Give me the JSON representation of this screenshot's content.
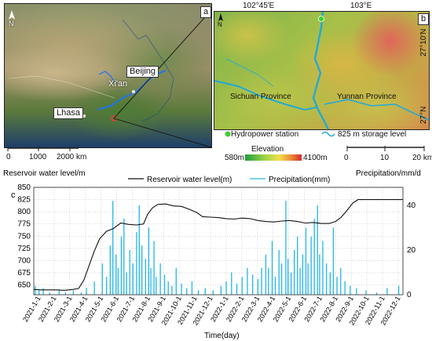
{
  "map_a": {
    "panel_letter": "a",
    "north": "N",
    "places": [
      "Beijing",
      "Xi'an",
      "Lhasa"
    ],
    "scale_ticks": [
      "0",
      "1000",
      "2000 km"
    ]
  },
  "map_b": {
    "panel_letter": "b",
    "north": "N",
    "lon_labels": [
      "102°45′E",
      "103°E"
    ],
    "lat_labels": [
      "27°10′N",
      "27°N"
    ],
    "regions": [
      "Sichuan Province",
      "Yunnan Province"
    ],
    "legend": {
      "station": "Hydropower station",
      "storage": "825 m storage level",
      "elevation_title": "Elevation",
      "elev_min": "580m",
      "elev_max": "4100m"
    },
    "scale_ticks": [
      "0",
      "10",
      "20 km"
    ],
    "colors": {
      "station": "#3fcf2f",
      "river": "#22a9d8"
    }
  },
  "chart_data": {
    "type": "line",
    "panel_letter": "c",
    "ylabel_left": "Reservoir water level/m",
    "ylabel_right": "Precipitation/mm/d",
    "xlabel": "Time(day)",
    "legend_position": "top",
    "left_axis": {
      "min": 630,
      "max": 850,
      "ticks": [
        650,
        675,
        700,
        725,
        750,
        775,
        800,
        825,
        850
      ]
    },
    "right_axis": {
      "min": 0,
      "max": 48,
      "ticks": [
        0,
        20,
        40
      ]
    },
    "x_ticks": [
      "2021-1-1",
      "2021-2-1",
      "2021-3-1",
      "2021-4-1",
      "2021-5-1",
      "2021-6-1",
      "2021-7-1",
      "2021-8-1",
      "2021-9-1",
      "2021-10-1",
      "2021-11-1",
      "2021-12-1",
      "2022-1-1",
      "2022-2-1",
      "2022-3-1",
      "2022-4-1",
      "2022-5-1",
      "2022-6-1",
      "2022-7-1",
      "2022-8-1",
      "2022-9-1",
      "2022-10-1",
      "2022-11-1",
      "2022-12-1"
    ],
    "series": [
      {
        "name": "Reservoir water level(m)",
        "color": "#111111",
        "axis": "left",
        "points": [
          [
            0,
            641
          ],
          [
            15,
            640
          ],
          [
            28,
            640
          ],
          [
            45,
            640
          ],
          [
            58,
            639
          ],
          [
            75,
            641
          ],
          [
            85,
            643
          ],
          [
            95,
            660
          ],
          [
            105,
            690
          ],
          [
            115,
            720
          ],
          [
            125,
            745
          ],
          [
            138,
            760
          ],
          [
            150,
            765
          ],
          [
            165,
            777
          ],
          [
            180,
            774
          ],
          [
            195,
            773
          ],
          [
            208,
            775
          ],
          [
            216,
            795
          ],
          [
            225,
            808
          ],
          [
            235,
            815
          ],
          [
            250,
            816
          ],
          [
            265,
            812
          ],
          [
            280,
            811
          ],
          [
            295,
            805
          ],
          [
            310,
            798
          ],
          [
            320,
            790
          ],
          [
            335,
            789
          ],
          [
            350,
            788
          ],
          [
            365,
            786
          ],
          [
            380,
            785
          ],
          [
            395,
            787
          ],
          [
            410,
            786
          ],
          [
            425,
            782
          ],
          [
            440,
            780
          ],
          [
            455,
            779
          ],
          [
            470,
            781
          ],
          [
            485,
            782
          ],
          [
            500,
            780
          ],
          [
            515,
            777
          ],
          [
            530,
            778
          ],
          [
            545,
            776
          ],
          [
            560,
            776
          ],
          [
            572,
            780
          ],
          [
            582,
            788
          ],
          [
            592,
            800
          ],
          [
            605,
            818
          ],
          [
            615,
            825
          ],
          [
            640,
            825
          ],
          [
            665,
            825
          ],
          [
            700,
            825
          ]
        ]
      },
      {
        "name": "Precipitation(mm)",
        "color": "#22b6e8",
        "axis": "right",
        "bars": [
          [
            3,
            4
          ],
          [
            10,
            2
          ],
          [
            18,
            3
          ],
          [
            30,
            1
          ],
          [
            48,
            2
          ],
          [
            60,
            1
          ],
          [
            75,
            2
          ],
          [
            90,
            1
          ],
          [
            100,
            3
          ],
          [
            115,
            6
          ],
          [
            130,
            14
          ],
          [
            138,
            8
          ],
          [
            145,
            22
          ],
          [
            150,
            42
          ],
          [
            156,
            18
          ],
          [
            160,
            12
          ],
          [
            166,
            26
          ],
          [
            171,
            34
          ],
          [
            176,
            10
          ],
          [
            182,
            20
          ],
          [
            188,
            14
          ],
          [
            195,
            28
          ],
          [
            200,
            40
          ],
          [
            205,
            22
          ],
          [
            212,
            16
          ],
          [
            218,
            30
          ],
          [
            222,
            12
          ],
          [
            228,
            24
          ],
          [
            232,
            8
          ],
          [
            240,
            14
          ],
          [
            248,
            9
          ],
          [
            255,
            6
          ],
          [
            262,
            4
          ],
          [
            270,
            12
          ],
          [
            280,
            5
          ],
          [
            290,
            3
          ],
          [
            300,
            6
          ],
          [
            312,
            2
          ],
          [
            325,
            3
          ],
          [
            340,
            2
          ],
          [
            355,
            4
          ],
          [
            365,
            6
          ],
          [
            375,
            10
          ],
          [
            385,
            5
          ],
          [
            395,
            8
          ],
          [
            405,
            12
          ],
          [
            415,
            9
          ],
          [
            425,
            7
          ],
          [
            432,
            12
          ],
          [
            440,
            18
          ],
          [
            445,
            12
          ],
          [
            452,
            24
          ],
          [
            458,
            8
          ],
          [
            465,
            20
          ],
          [
            470,
            14
          ],
          [
            478,
            42
          ],
          [
            482,
            16
          ],
          [
            488,
            10
          ],
          [
            494,
            20
          ],
          [
            500,
            26
          ],
          [
            505,
            12
          ],
          [
            510,
            18
          ],
          [
            516,
            30
          ],
          [
            520,
            14
          ],
          [
            526,
            26
          ],
          [
            532,
            34
          ],
          [
            538,
            40
          ],
          [
            542,
            18
          ],
          [
            548,
            24
          ],
          [
            555,
            14
          ],
          [
            562,
            10
          ],
          [
            568,
            30
          ],
          [
            575,
            8
          ],
          [
            582,
            12
          ],
          [
            590,
            6
          ],
          [
            600,
            4
          ],
          [
            612,
            3
          ],
          [
            630,
            2
          ],
          [
            650,
            1
          ],
          [
            670,
            3
          ],
          [
            692,
            4
          ]
        ]
      }
    ]
  }
}
